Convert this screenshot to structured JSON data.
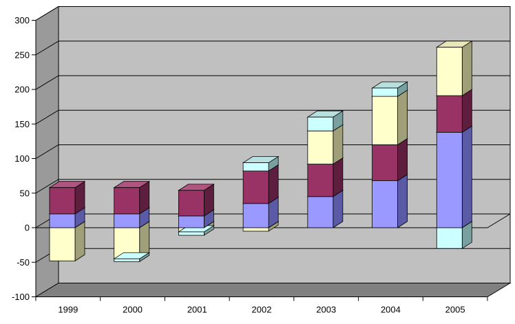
{
  "chart_data": {
    "type": "bar",
    "stacked": true,
    "three_d": true,
    "categories": [
      "1999",
      "2000",
      "2001",
      "2002",
      "2003",
      "2004",
      "2005"
    ],
    "ylim": [
      -100,
      300
    ],
    "yticks": [
      "300",
      "250",
      "200",
      "150",
      "100",
      "50",
      "0",
      "-50",
      "-100"
    ],
    "grid": true,
    "legend": "none",
    "positive_series": [
      {
        "color": "#9999ff",
        "side": "#5a5aa6",
        "top": "#b9b9ff",
        "values": [
          20,
          20,
          17,
          35,
          45,
          68,
          138
        ]
      },
      {
        "color": "#993366",
        "side": "#5e1f3f",
        "top": "#b05580",
        "values": [
          38,
          38,
          37,
          47,
          47,
          52,
          53
        ]
      },
      {
        "color": "#ffffcc",
        "side": "#9f9f7a",
        "top": "#e6e6b8",
        "values": [
          0,
          0,
          0,
          0,
          48,
          70,
          70
        ]
      },
      {
        "color": "#ccffff",
        "side": "#7a9f9f",
        "top": "#b8dede",
        "values": [
          0,
          0,
          0,
          12,
          20,
          12,
          0
        ]
      }
    ],
    "negative_series": [
      {
        "color": "#ffffcc",
        "side": "#9f9f7a",
        "values": [
          -48,
          -45,
          -6,
          -5,
          0,
          0,
          0
        ]
      },
      {
        "color": "#ccffff",
        "side": "#7a9f9f",
        "values": [
          0,
          -4,
          -5,
          0,
          0,
          0,
          -30
        ]
      }
    ]
  }
}
